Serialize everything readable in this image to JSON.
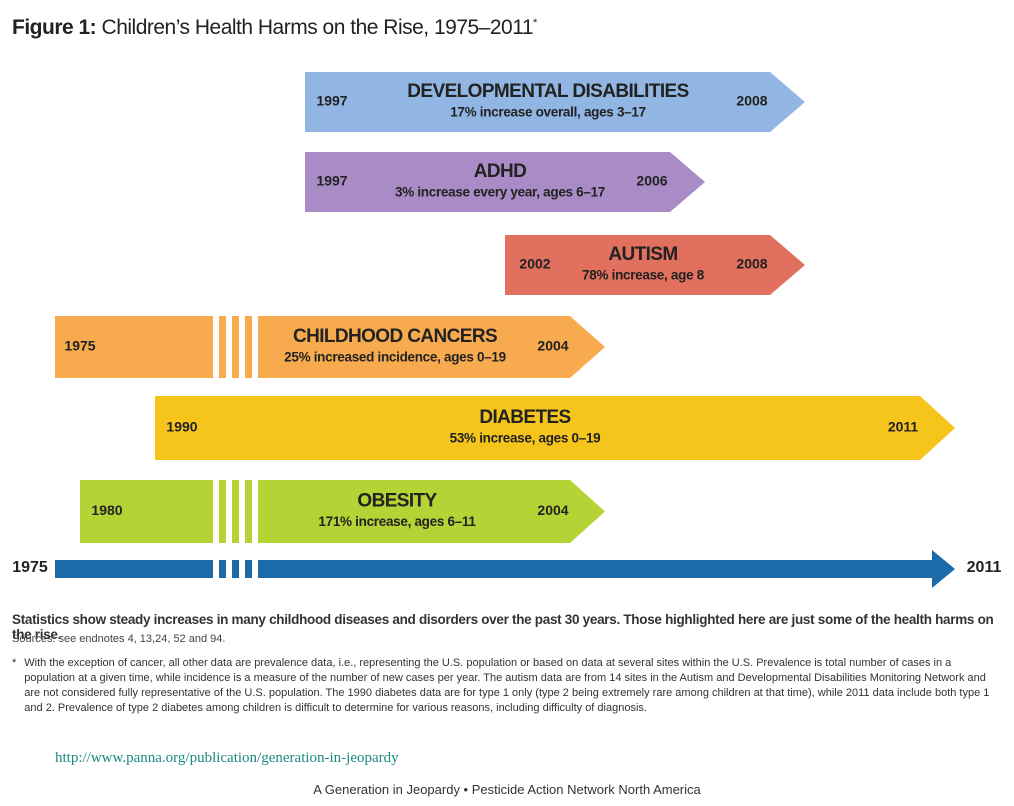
{
  "title": {
    "label": "Figure 1:",
    "text": "Children’s Health Harms on the Rise, 1975–2011",
    "marker": "*"
  },
  "arrows": [
    {
      "name": "DEVELOPMENTAL DISABILITIES",
      "detail": "17% increase overall, ages 3–17",
      "start": "1997",
      "end": "2008"
    },
    {
      "name": "ADHD",
      "detail": "3% increase every year, ages 6–17",
      "start": "1997",
      "end": "2006"
    },
    {
      "name": "AUTISM",
      "detail": "78% increase, age 8",
      "start": "2002",
      "end": "2008"
    },
    {
      "name": "CHILDHOOD CANCERS",
      "detail": "25% increased incidence, ages 0–19",
      "start": "1975",
      "end": "2004"
    },
    {
      "name": "DIABETES",
      "detail": "53% increase, ages 0–19",
      "start": "1990",
      "end": "2011"
    },
    {
      "name": "OBESITY",
      "detail": "171% increase, ages 6–11",
      "start": "1980",
      "end": "2004"
    }
  ],
  "axis": {
    "start": "1975",
    "end": "2011"
  },
  "caption": "Statistics show steady increases in many childhood diseases and disorders over the past 30 years. Those highlighted here are just some of the health harms on the rise.",
  "sources": "Sources: see endnotes 4, 13,24, 52 and 94.",
  "footnote": {
    "marker": "*",
    "text": "With the exception of cancer, all other data are prevalence data, i.e., representing the U.S. population or based on data at several sites within the U.S. Prevalence is total number of cases in a population at a given time, while incidence is a measure of the number of new cases per year. The autism data are from 14 sites in the Autism and Developmental Disabilities Monitoring Network and are not considered fully representative of the U.S. population. The 1990 diabetes data are for type 1 only (type 2 being extremely rare among children at that time), while 2011 data include both type 1 and 2. Prevalence of type 2 diabetes among children is difficult to determine for various reasons, including difficulty of diagnosis."
  },
  "link": "http://www.panna.org/publication/generation-in-jeopardy",
  "footer": "A Generation in Jeopardy • Pesticide Action Network North America"
}
